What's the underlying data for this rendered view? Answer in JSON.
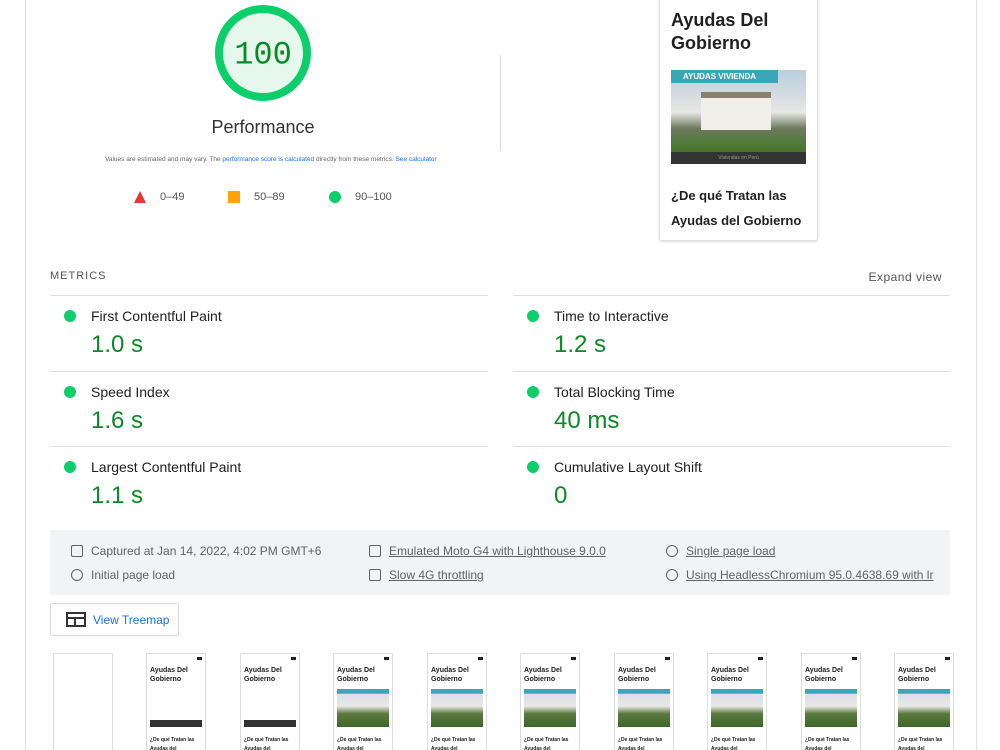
{
  "score": {
    "value": 100,
    "label": "Performance"
  },
  "note": {
    "prefix": "Values are estimated and may vary. The ",
    "link": "performance score is calculated",
    "middle": " directly from these metrics. ",
    "link2": "See calculator"
  },
  "legend": [
    "0–49",
    "50–89",
    "90–100"
  ],
  "preview": {
    "title": "Ayudas Del Gobierno",
    "banner": "AYUDAS VIVIENDA",
    "caption": "Viviendas en Perú",
    "heading": "¿De qué Tratan las Ayudas del Gobierno"
  },
  "metrics": {
    "title": "METRICS",
    "expand": "Expand view",
    "items": [
      {
        "name": "First Contentful Paint",
        "value": "1.0 s"
      },
      {
        "name": "Time to Interactive",
        "value": "1.2 s"
      },
      {
        "name": "Speed Index",
        "value": "1.6 s"
      },
      {
        "name": "Total Blocking Time",
        "value": "40 ms"
      },
      {
        "name": "Largest Contentful Paint",
        "value": "1.1 s"
      },
      {
        "name": "Cumulative Layout Shift",
        "value": "0"
      }
    ]
  },
  "environment": [
    "Captured at Jan 14, 2022, 4:02 PM GMT+6",
    "Emulated Moto G4 with Lighthouse 9.0.0",
    "Single page load",
    "Initial page load",
    "Slow 4G throttling",
    "Using HeadlessChromium 95.0.4638.69 with lr"
  ],
  "treemap": "View Treemap"
}
